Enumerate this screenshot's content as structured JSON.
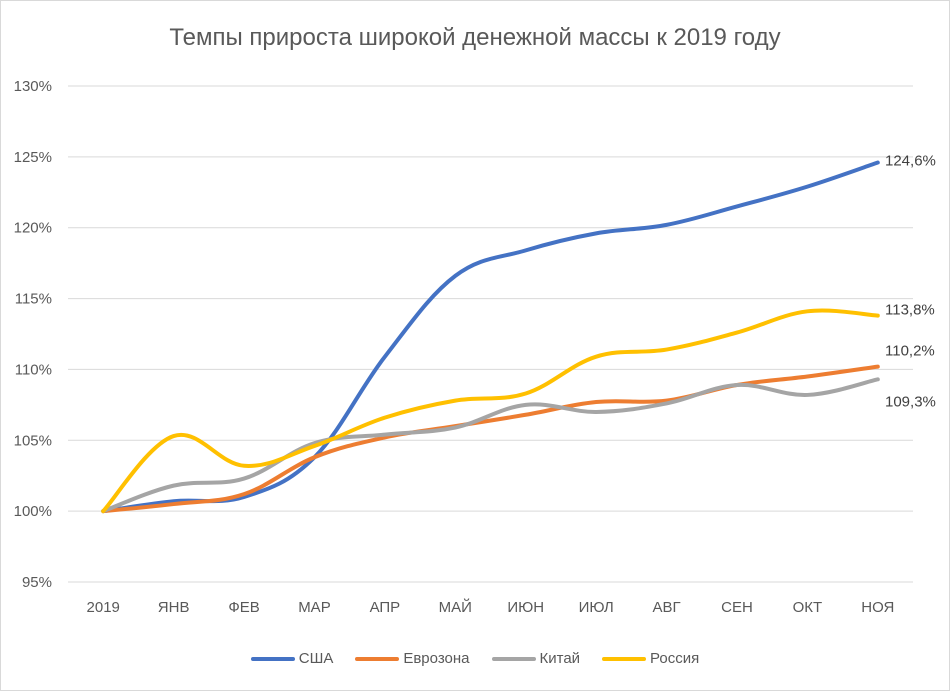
{
  "chart_data": {
    "type": "line",
    "title": "Темпы прироста широкой денежной массы к 2019 году",
    "categories": [
      "2019",
      "ЯНВ",
      "ФЕВ",
      "МАР",
      "АПР",
      "МАЙ",
      "ИЮН",
      "ИЮЛ",
      "АВГ",
      "СЕН",
      "ОКТ",
      "НОЯ"
    ],
    "y_ticks": [
      "95%",
      "100%",
      "105%",
      "110%",
      "115%",
      "120%",
      "125%",
      "130%"
    ],
    "ylim": [
      95,
      130
    ],
    "grid": true,
    "legend_position": "bottom",
    "series": [
      {
        "name": "США",
        "color": "#4472c4",
        "values": [
          100,
          100.7,
          101.0,
          103.8,
          110.9,
          116.6,
          118.4,
          119.6,
          120.2,
          121.5,
          122.9,
          124.6
        ],
        "end_label": "124,6%"
      },
      {
        "name": "Еврозона",
        "color": "#ed7d31",
        "values": [
          100,
          100.5,
          101.2,
          103.8,
          105.2,
          106.0,
          106.8,
          107.7,
          107.8,
          108.9,
          109.5,
          110.2
        ],
        "end_label": "110,2%"
      },
      {
        "name": "Китай",
        "color": "#a5a5a5",
        "values": [
          100,
          101.8,
          102.3,
          104.8,
          105.4,
          105.9,
          107.5,
          107.0,
          107.6,
          108.9,
          108.2,
          109.3
        ],
        "end_label": "109,3%"
      },
      {
        "name": "Россия",
        "color": "#ffc000",
        "values": [
          100,
          105.3,
          103.2,
          104.6,
          106.6,
          107.8,
          108.3,
          110.9,
          111.4,
          112.6,
          114.1,
          113.8
        ],
        "end_label": "113,8%"
      }
    ]
  }
}
